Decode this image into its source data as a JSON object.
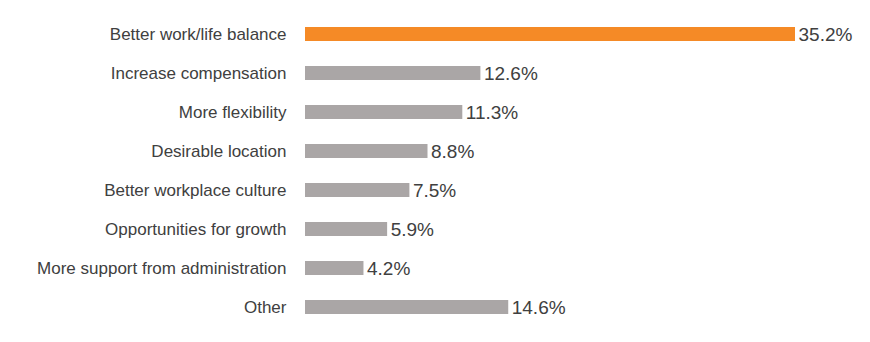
{
  "chart_data": {
    "type": "bar",
    "orientation": "horizontal",
    "categories": [
      "Better work/life balance",
      "Increase compensation",
      "More flexibility",
      "Desirable location",
      "Better workplace culture",
      "Opportunities for growth",
      "More support from administration",
      "Other"
    ],
    "values": [
      35.2,
      12.6,
      11.3,
      8.8,
      7.5,
      5.9,
      4.2,
      14.6
    ],
    "value_labels": [
      "35.2%",
      "12.6%",
      "11.3%",
      "8.8%",
      "7.5%",
      "5.9%",
      "4.2%",
      "14.6%"
    ],
    "colors": [
      "#f58a26",
      "#aaa6a6",
      "#aaa6a6",
      "#aaa6a6",
      "#aaa6a6",
      "#aaa6a6",
      "#aaa6a6",
      "#aaa6a6"
    ],
    "xlim": [
      0,
      35.2
    ],
    "xticks": [],
    "data_labels": true,
    "grid": false,
    "tick_labels": "y"
  }
}
